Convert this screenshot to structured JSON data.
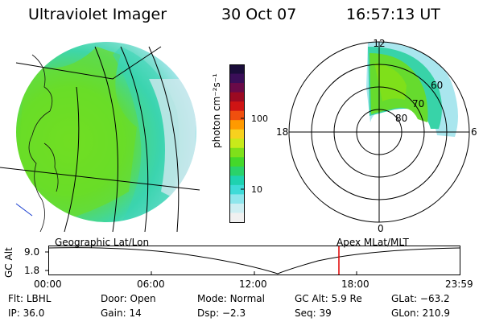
{
  "header": {
    "instrument": "Ultraviolet Imager",
    "date": "30 Oct 07",
    "time": "16:57:13 UT"
  },
  "colorbar": {
    "unit_label": "photon cm⁻²s⁻¹",
    "ticks": [
      "100",
      "10"
    ],
    "colors": [
      "#1a0d3a",
      "#3a0e58",
      "#6a0a48",
      "#9c0a22",
      "#cf1414",
      "#f04f0e",
      "#ff9a00",
      "#f7d11e",
      "#c8ea1a",
      "#7fe01a",
      "#44d82a",
      "#2ad26a",
      "#1ed2b0",
      "#3edbd8",
      "#8ee6ec",
      "#cdeef2",
      "#f0f0f0"
    ]
  },
  "polar_plot": {
    "mlt_labels": {
      "top": "12",
      "left": "18",
      "right": "6",
      "bottom": "0"
    },
    "lat_labels": [
      "60",
      "70",
      "80"
    ]
  },
  "timeline": {
    "left_label": "Geographic Lat/Lon",
    "right_label": "Apex MLat/MLT",
    "axis_title": "GC Alt",
    "y_ticks": [
      "9.0",
      "1.8"
    ],
    "x_ticks": [
      "00:00",
      "06:00",
      "12:00",
      "18:00",
      "23:59"
    ],
    "marker_color": "#e00000"
  },
  "status": {
    "filter_label": "Flt:",
    "filter_value": "LBHL",
    "door_label": "Door:",
    "door_value": "Open",
    "mode_label": "Mode:",
    "mode_value": "Normal",
    "gcalt_label": "GC Alt:",
    "gcalt_value": "5.9 Re",
    "glat_label": "GLat:",
    "glat_value": "−63.2",
    "ip_label": "IP:",
    "ip_value": "36.0",
    "gain_label": "Gain:",
    "gain_value": "14",
    "dsp_label": "Dsp:",
    "dsp_value": "−2.3",
    "seq_label": "Seq:",
    "seq_value": "39",
    "glon_label": "GLon:",
    "glon_value": "210.9"
  }
}
